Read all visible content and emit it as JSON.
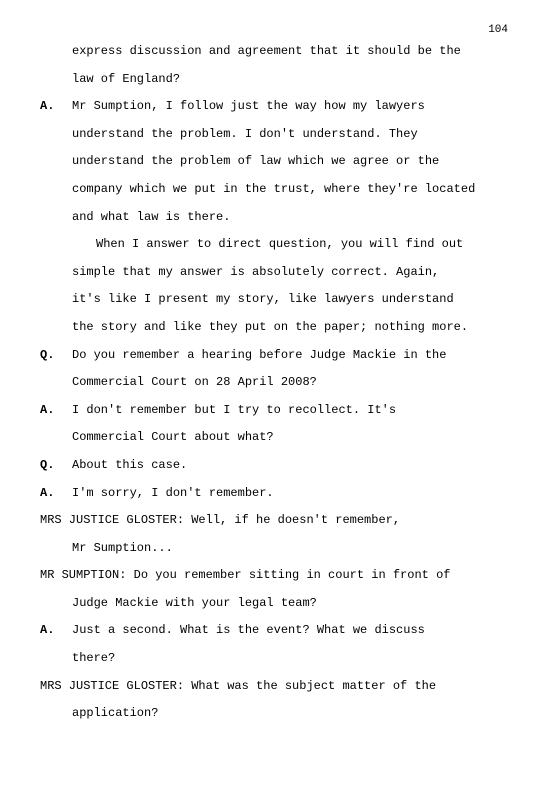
{
  "page_number": "104",
  "font_family": "Courier New",
  "font_size_pt": 12,
  "text_color": "#000000",
  "background_color": "#ffffff",
  "lines": [
    {
      "speaker": "",
      "text": "express discussion and agreement that it should be the",
      "cls": "indent"
    },
    {
      "speaker": "",
      "text": "law of England?",
      "cls": "indent"
    },
    {
      "speaker": "A.",
      "text": "Mr Sumption, I follow just the way how my lawyers",
      "cls": ""
    },
    {
      "speaker": "",
      "text": "understand the problem.  I don't understand.  They",
      "cls": "indent"
    },
    {
      "speaker": "",
      "text": "understand the problem of law which we agree or the",
      "cls": "indent"
    },
    {
      "speaker": "",
      "text": "company which we put in the trust, where they're located",
      "cls": "indent"
    },
    {
      "speaker": "",
      "text": "and what law is there.",
      "cls": "indent"
    },
    {
      "speaker": "",
      "text": "When I answer to direct question, you will find out",
      "cls": "indent2"
    },
    {
      "speaker": "",
      "text": "simple that my answer is absolutely correct.  Again,",
      "cls": "indent"
    },
    {
      "speaker": "",
      "text": "it's like I present my story, like lawyers understand",
      "cls": "indent"
    },
    {
      "speaker": "",
      "text": "the story and like they put on the paper; nothing more.",
      "cls": "indent"
    },
    {
      "speaker": "Q.",
      "text": "Do you remember a hearing before Judge Mackie in the",
      "cls": ""
    },
    {
      "speaker": "",
      "text": "Commercial Court on 28 April 2008?",
      "cls": "indent"
    },
    {
      "speaker": "A.",
      "text": "I don't remember but I try to recollect.  It's",
      "cls": ""
    },
    {
      "speaker": "",
      "text": "Commercial Court about what?",
      "cls": "indent"
    },
    {
      "speaker": "Q.",
      "text": "About this case.",
      "cls": ""
    },
    {
      "speaker": "A.",
      "text": "I'm sorry, I don't remember.",
      "cls": ""
    },
    {
      "speaker": "",
      "text": "MRS JUSTICE GLOSTER:  Well, if he doesn't remember,",
      "cls": "full"
    },
    {
      "speaker": "",
      "text": "Mr Sumption...",
      "cls": "indent"
    },
    {
      "speaker": "",
      "text": "MR SUMPTION:  Do you remember sitting in court in front of",
      "cls": "full"
    },
    {
      "speaker": "",
      "text": "Judge Mackie with your legal team?",
      "cls": "indent"
    },
    {
      "speaker": "A.",
      "text": "Just a second.  What is the event?  What we discuss",
      "cls": ""
    },
    {
      "speaker": "",
      "text": "there?",
      "cls": "indent"
    },
    {
      "speaker": "",
      "text": "MRS JUSTICE GLOSTER:  What was the subject matter of the",
      "cls": "full"
    },
    {
      "speaker": "",
      "text": "application?",
      "cls": "indent"
    }
  ]
}
